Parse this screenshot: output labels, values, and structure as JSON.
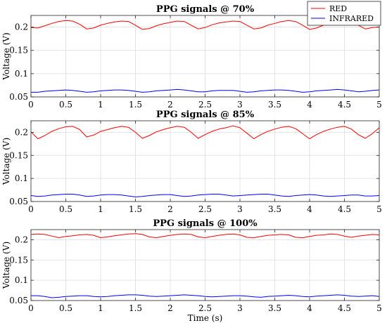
{
  "chart_data": [
    {
      "type": "line",
      "title": "PPG signals @ 70%",
      "xlabel": "",
      "ylabel": "Voltage (V)",
      "xlim": [
        0,
        5
      ],
      "ylim": [
        0.05,
        0.225
      ],
      "xticks": [
        "0",
        "0.5",
        "1",
        "1.5",
        "2",
        "2.5",
        "3",
        "3.5",
        "4",
        "4.5",
        "5"
      ],
      "yticks": [
        "0.05",
        "0.1",
        "0.15",
        "0.2"
      ],
      "grid": true,
      "series": [
        {
          "name": "RED",
          "color": "#ff0000",
          "x": [
            0,
            0.1,
            0.2,
            0.3,
            0.4,
            0.5,
            0.6,
            0.7,
            0.8,
            0.9,
            1.0,
            1.1,
            1.2,
            1.3,
            1.4,
            1.5,
            1.6,
            1.7,
            1.8,
            1.9,
            2.0,
            2.1,
            2.2,
            2.3,
            2.4,
            2.5,
            2.6,
            2.7,
            2.8,
            2.9,
            3.0,
            3.1,
            3.2,
            3.3,
            3.4,
            3.5,
            3.6,
            3.7,
            3.8,
            3.9,
            4.0,
            4.1,
            4.2,
            4.3,
            4.4,
            4.5,
            4.6,
            4.7,
            4.8,
            4.9,
            5.0
          ],
          "y": [
            0.199,
            0.198,
            0.203,
            0.208,
            0.212,
            0.214,
            0.213,
            0.206,
            0.196,
            0.198,
            0.204,
            0.208,
            0.211,
            0.213,
            0.212,
            0.204,
            0.195,
            0.197,
            0.203,
            0.207,
            0.21,
            0.213,
            0.212,
            0.204,
            0.196,
            0.199,
            0.205,
            0.209,
            0.211,
            0.213,
            0.212,
            0.204,
            0.196,
            0.198,
            0.204,
            0.208,
            0.212,
            0.214,
            0.212,
            0.204,
            0.195,
            0.198,
            0.204,
            0.208,
            0.211,
            0.213,
            0.212,
            0.204,
            0.196,
            0.199,
            0.2
          ]
        },
        {
          "name": "INFRARED",
          "color": "#0000ff",
          "x": [
            0,
            0.1,
            0.2,
            0.3,
            0.4,
            0.5,
            0.6,
            0.7,
            0.8,
            0.9,
            1.0,
            1.1,
            1.2,
            1.3,
            1.4,
            1.5,
            1.6,
            1.7,
            1.8,
            1.9,
            2.0,
            2.1,
            2.2,
            2.3,
            2.4,
            2.5,
            2.6,
            2.7,
            2.8,
            2.9,
            3.0,
            3.1,
            3.2,
            3.3,
            3.4,
            3.5,
            3.6,
            3.7,
            3.8,
            3.9,
            4.0,
            4.1,
            4.2,
            4.3,
            4.4,
            4.5,
            4.6,
            4.7,
            4.8,
            4.9,
            5.0
          ],
          "y": [
            0.06,
            0.06,
            0.062,
            0.063,
            0.064,
            0.065,
            0.064,
            0.062,
            0.06,
            0.061,
            0.063,
            0.064,
            0.065,
            0.065,
            0.064,
            0.062,
            0.06,
            0.061,
            0.063,
            0.064,
            0.065,
            0.066,
            0.065,
            0.063,
            0.061,
            0.061,
            0.063,
            0.064,
            0.064,
            0.064,
            0.062,
            0.06,
            0.061,
            0.063,
            0.064,
            0.065,
            0.065,
            0.064,
            0.062,
            0.06,
            0.061,
            0.063,
            0.064,
            0.065,
            0.066,
            0.065,
            0.063,
            0.061,
            0.062,
            0.064,
            0.065
          ]
        }
      ]
    },
    {
      "type": "line",
      "title": "PPG signals @ 85%",
      "xlabel": "",
      "ylabel": "Voltage (V)",
      "xlim": [
        0,
        5
      ],
      "ylim": [
        0.05,
        0.225
      ],
      "xticks": [
        "0",
        "0.5",
        "1",
        "1.5",
        "2",
        "2.5",
        "3",
        "3.5",
        "4",
        "4.5",
        "5"
      ],
      "yticks": [
        "0.05",
        "0.1",
        "0.15",
        "0.2"
      ],
      "grid": true,
      "series": [
        {
          "name": "RED",
          "color": "#ff0000",
          "x": [
            0,
            0.1,
            0.2,
            0.3,
            0.4,
            0.5,
            0.6,
            0.7,
            0.8,
            0.9,
            1.0,
            1.1,
            1.2,
            1.3,
            1.4,
            1.5,
            1.6,
            1.7,
            1.8,
            1.9,
            2.0,
            2.1,
            2.2,
            2.3,
            2.4,
            2.5,
            2.6,
            2.7,
            2.8,
            2.9,
            3.0,
            3.1,
            3.2,
            3.3,
            3.4,
            3.5,
            3.6,
            3.7,
            3.8,
            3.9,
            4.0,
            4.1,
            4.2,
            4.3,
            4.4,
            4.5,
            4.6,
            4.7,
            4.8,
            4.9,
            5.0
          ],
          "y": [
            0.201,
            0.186,
            0.193,
            0.202,
            0.208,
            0.212,
            0.213,
            0.206,
            0.19,
            0.194,
            0.202,
            0.206,
            0.21,
            0.213,
            0.211,
            0.2,
            0.187,
            0.193,
            0.201,
            0.206,
            0.21,
            0.213,
            0.211,
            0.2,
            0.187,
            0.195,
            0.202,
            0.207,
            0.21,
            0.214,
            0.21,
            0.198,
            0.186,
            0.195,
            0.202,
            0.207,
            0.211,
            0.213,
            0.208,
            0.197,
            0.186,
            0.195,
            0.202,
            0.207,
            0.211,
            0.213,
            0.207,
            0.195,
            0.187,
            0.197,
            0.21
          ]
        },
        {
          "name": "INFRARED",
          "color": "#0000ff",
          "x": [
            0,
            0.1,
            0.2,
            0.3,
            0.4,
            0.5,
            0.6,
            0.7,
            0.8,
            0.9,
            1.0,
            1.1,
            1.2,
            1.3,
            1.4,
            1.5,
            1.6,
            1.7,
            1.8,
            1.9,
            2.0,
            2.1,
            2.2,
            2.3,
            2.4,
            2.5,
            2.6,
            2.7,
            2.8,
            2.9,
            3.0,
            3.1,
            3.2,
            3.3,
            3.4,
            3.5,
            3.6,
            3.7,
            3.8,
            3.9,
            4.0,
            4.1,
            4.2,
            4.3,
            4.4,
            4.5,
            4.6,
            4.7,
            4.8,
            4.9,
            5.0
          ],
          "y": [
            0.063,
            0.061,
            0.062,
            0.064,
            0.065,
            0.066,
            0.066,
            0.064,
            0.061,
            0.062,
            0.064,
            0.065,
            0.065,
            0.064,
            0.062,
            0.06,
            0.061,
            0.063,
            0.064,
            0.065,
            0.065,
            0.063,
            0.061,
            0.062,
            0.064,
            0.065,
            0.066,
            0.066,
            0.064,
            0.062,
            0.063,
            0.064,
            0.065,
            0.066,
            0.066,
            0.064,
            0.062,
            0.061,
            0.063,
            0.064,
            0.065,
            0.064,
            0.062,
            0.061,
            0.062,
            0.063,
            0.064,
            0.064,
            0.062,
            0.062,
            0.063
          ]
        }
      ]
    },
    {
      "type": "line",
      "title": "PPG signals @ 100%",
      "xlabel": "Time (s)",
      "ylabel": "Voltage (V)",
      "xlim": [
        0,
        5
      ],
      "ylim": [
        0.05,
        0.225
      ],
      "xticks": [
        "0",
        "0.5",
        "1",
        "1.5",
        "2",
        "2.5",
        "3",
        "3.5",
        "4",
        "4.5",
        "5"
      ],
      "yticks": [
        "0.05",
        "0.1",
        "0.15",
        "0.2"
      ],
      "grid": true,
      "series": [
        {
          "name": "RED",
          "color": "#ff0000",
          "x": [
            0,
            0.1,
            0.2,
            0.3,
            0.4,
            0.5,
            0.6,
            0.7,
            0.8,
            0.9,
            1.0,
            1.1,
            1.2,
            1.3,
            1.4,
            1.5,
            1.6,
            1.7,
            1.8,
            1.9,
            2.0,
            2.1,
            2.2,
            2.3,
            2.4,
            2.5,
            2.6,
            2.7,
            2.8,
            2.9,
            3.0,
            3.1,
            3.2,
            3.3,
            3.4,
            3.5,
            3.6,
            3.7,
            3.8,
            3.9,
            4.0,
            4.1,
            4.2,
            4.3,
            4.4,
            4.5,
            4.6,
            4.7,
            4.8,
            4.9,
            5.0
          ],
          "y": [
            0.213,
            0.214,
            0.213,
            0.209,
            0.205,
            0.208,
            0.21,
            0.212,
            0.213,
            0.211,
            0.205,
            0.207,
            0.21,
            0.212,
            0.214,
            0.215,
            0.213,
            0.207,
            0.205,
            0.208,
            0.211,
            0.213,
            0.214,
            0.213,
            0.207,
            0.205,
            0.208,
            0.211,
            0.213,
            0.214,
            0.212,
            0.206,
            0.205,
            0.208,
            0.211,
            0.212,
            0.213,
            0.212,
            0.206,
            0.205,
            0.208,
            0.211,
            0.212,
            0.214,
            0.213,
            0.209,
            0.206,
            0.209,
            0.211,
            0.213,
            0.212
          ]
        },
        {
          "name": "INFRARED",
          "color": "#0000ff",
          "x": [
            0,
            0.1,
            0.2,
            0.3,
            0.4,
            0.5,
            0.6,
            0.7,
            0.8,
            0.9,
            1.0,
            1.1,
            1.2,
            1.3,
            1.4,
            1.5,
            1.6,
            1.7,
            1.8,
            1.9,
            2.0,
            2.1,
            2.2,
            2.3,
            2.4,
            2.5,
            2.6,
            2.7,
            2.8,
            2.9,
            3.0,
            3.1,
            3.2,
            3.3,
            3.4,
            3.5,
            3.6,
            3.7,
            3.8,
            3.9,
            4.0,
            4.1,
            4.2,
            4.3,
            4.4,
            4.5,
            4.6,
            4.7,
            4.8,
            4.9,
            5.0
          ],
          "y": [
            0.062,
            0.062,
            0.06,
            0.057,
            0.058,
            0.06,
            0.061,
            0.062,
            0.062,
            0.06,
            0.059,
            0.06,
            0.062,
            0.063,
            0.064,
            0.064,
            0.063,
            0.061,
            0.06,
            0.061,
            0.062,
            0.063,
            0.064,
            0.063,
            0.062,
            0.06,
            0.059,
            0.06,
            0.061,
            0.062,
            0.062,
            0.061,
            0.059,
            0.058,
            0.06,
            0.061,
            0.062,
            0.063,
            0.062,
            0.06,
            0.059,
            0.061,
            0.062,
            0.063,
            0.064,
            0.063,
            0.061,
            0.06,
            0.061,
            0.062,
            0.06
          ]
        }
      ]
    }
  ],
  "legend": {
    "placement": "top-right",
    "entries": [
      {
        "label": "RED",
        "color": "#ff0000"
      },
      {
        "label": "INFRARED",
        "color": "#0000ff"
      }
    ]
  }
}
